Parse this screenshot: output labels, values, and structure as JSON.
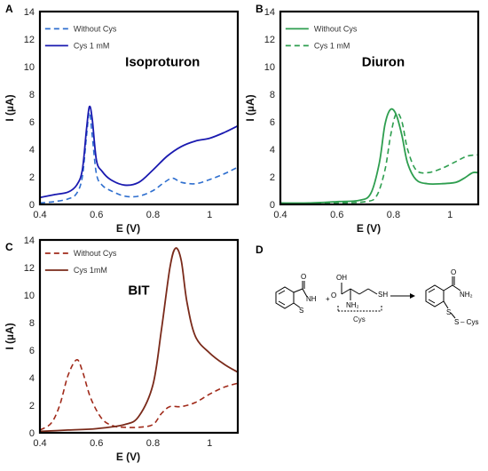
{
  "chart_data": [
    {
      "panel": "A",
      "type": "line",
      "title": "Isoproturon",
      "xlabel": "E (V)",
      "ylabel": "I (µA)",
      "xlim": [
        0.4,
        1.1
      ],
      "ylim": [
        0,
        14
      ],
      "xticks": [
        "0.4",
        "0.6",
        "0.8",
        "1"
      ],
      "xtick_values": [
        0.4,
        0.6,
        0.8,
        1.0
      ],
      "yticks": [
        "0",
        "2",
        "4",
        "6",
        "8",
        "10",
        "12",
        "14"
      ],
      "ytick_values": [
        0,
        2,
        4,
        6,
        8,
        10,
        12,
        14
      ],
      "grid": false,
      "legend_position": "top-left",
      "series": [
        {
          "name": "Without Cys",
          "style": "dashed",
          "color": "#2f6fcf",
          "x": [
            0.4,
            0.45,
            0.5,
            0.53,
            0.55,
            0.565,
            0.575,
            0.585,
            0.6,
            0.62,
            0.65,
            0.7,
            0.75,
            0.8,
            0.84,
            0.87,
            0.9,
            0.95,
            1.0,
            1.05,
            1.1
          ],
          "y": [
            0.1,
            0.2,
            0.4,
            0.8,
            2.0,
            5.0,
            6.7,
            5.0,
            2.2,
            1.4,
            1.0,
            0.6,
            0.6,
            1.0,
            1.6,
            1.9,
            1.6,
            1.5,
            1.8,
            2.2,
            2.7
          ]
        },
        {
          "name": "Cys 1 mM",
          "style": "solid",
          "color": "#1a1ab0",
          "x": [
            0.4,
            0.45,
            0.5,
            0.53,
            0.55,
            0.565,
            0.575,
            0.585,
            0.6,
            0.62,
            0.65,
            0.7,
            0.75,
            0.8,
            0.85,
            0.9,
            0.95,
            1.0,
            1.05,
            1.1
          ],
          "y": [
            0.5,
            0.7,
            0.9,
            1.4,
            2.5,
            5.5,
            7.1,
            6.2,
            3.2,
            2.4,
            1.8,
            1.4,
            1.6,
            2.5,
            3.5,
            4.2,
            4.6,
            4.8,
            5.2,
            5.7
          ]
        }
      ]
    },
    {
      "panel": "B",
      "type": "line",
      "title": "Diuron",
      "xlabel": "E (V)",
      "ylabel": "I (µA)",
      "xlim": [
        0.4,
        1.1
      ],
      "ylim": [
        0,
        14
      ],
      "xticks": [
        "0.4",
        "0.6",
        "0.8",
        "1"
      ],
      "xtick_values": [
        0.4,
        0.6,
        0.8,
        1.0
      ],
      "yticks": [
        "0",
        "2",
        "4",
        "6",
        "8",
        "10",
        "12",
        "14"
      ],
      "ytick_values": [
        0,
        2,
        4,
        6,
        8,
        10,
        12,
        14
      ],
      "grid": false,
      "legend_position": "top-left",
      "series": [
        {
          "name": "Without Cys",
          "style": "solid",
          "color": "#2e9e4f",
          "x": [
            0.4,
            0.5,
            0.6,
            0.68,
            0.72,
            0.75,
            0.77,
            0.79,
            0.81,
            0.83,
            0.85,
            0.88,
            0.92,
            0.97,
            1.02,
            1.05,
            1.08,
            1.1
          ],
          "y": [
            0.1,
            0.1,
            0.2,
            0.3,
            0.8,
            3.0,
            5.8,
            6.9,
            6.5,
            5.0,
            3.0,
            1.8,
            1.5,
            1.5,
            1.6,
            1.9,
            2.3,
            2.3
          ]
        },
        {
          "name": "Cys 1 mM",
          "style": "dashed",
          "color": "#2e9e4f",
          "x": [
            0.4,
            0.5,
            0.6,
            0.7,
            0.74,
            0.77,
            0.79,
            0.81,
            0.83,
            0.85,
            0.88,
            0.92,
            0.97,
            1.02,
            1.06,
            1.1
          ],
          "y": [
            0.05,
            0.05,
            0.1,
            0.2,
            0.6,
            2.5,
            5.0,
            6.6,
            6.0,
            4.0,
            2.5,
            2.3,
            2.6,
            3.1,
            3.5,
            3.6
          ]
        }
      ]
    },
    {
      "panel": "C",
      "type": "line",
      "title": "BIT",
      "xlabel": "E (V)",
      "ylabel": "I (µA)",
      "xlim": [
        0.4,
        1.1
      ],
      "ylim": [
        0,
        14
      ],
      "xticks": [
        "0.4",
        "0.6",
        "0.8",
        "1"
      ],
      "xtick_values": [
        0.4,
        0.6,
        0.8,
        1.0
      ],
      "yticks": [
        "0",
        "2",
        "4",
        "6",
        "8",
        "10",
        "12",
        "14"
      ],
      "ytick_values": [
        0,
        2,
        4,
        6,
        8,
        10,
        12,
        14
      ],
      "grid": false,
      "legend_position": "top-left",
      "series": [
        {
          "name": "Without Cys",
          "style": "dashed",
          "color": "#a02a1a",
          "x": [
            0.4,
            0.44,
            0.47,
            0.5,
            0.53,
            0.55,
            0.58,
            0.62,
            0.66,
            0.7,
            0.75,
            0.8,
            0.83,
            0.86,
            0.9,
            0.95,
            1.0,
            1.05,
            1.1
          ],
          "y": [
            0.2,
            0.7,
            2.0,
            4.2,
            5.3,
            4.5,
            2.5,
            1.0,
            0.5,
            0.4,
            0.4,
            0.6,
            1.4,
            1.9,
            1.9,
            2.2,
            2.8,
            3.3,
            3.6
          ]
        },
        {
          "name": "Cys 1mM",
          "style": "solid",
          "color": "#7a2a1a",
          "x": [
            0.4,
            0.5,
            0.6,
            0.7,
            0.75,
            0.8,
            0.83,
            0.86,
            0.88,
            0.9,
            0.92,
            0.95,
            1.0,
            1.05,
            1.1
          ],
          "y": [
            0.1,
            0.2,
            0.3,
            0.6,
            1.2,
            3.5,
            7.5,
            12.0,
            13.4,
            12.5,
            9.5,
            7.0,
            5.8,
            5.0,
            4.4
          ]
        }
      ]
    }
  ],
  "panel_d": {
    "letter": "D",
    "plus": "+",
    "reactant_nh": "NH",
    "reactant_s": "S",
    "reactant_o": "O",
    "cys_oh": "OH",
    "cys_o": "O",
    "cys_nh2": "NH₂",
    "cys_sh": "SH",
    "cys_label": "Cys",
    "product_nh2": "NH₂",
    "product_o": "O",
    "product_s1": "S",
    "product_s2": "S",
    "product_cys": "– Cys"
  }
}
